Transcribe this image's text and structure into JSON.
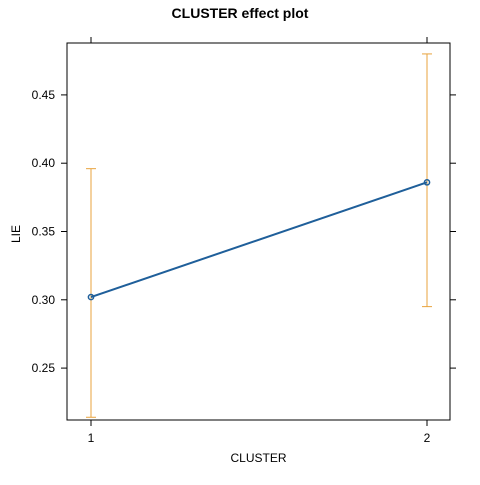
{
  "chart_data": {
    "type": "line",
    "title": "CLUSTER effect plot",
    "xlabel": "CLUSTER",
    "ylabel": "LIE",
    "categories": [
      "1",
      "2"
    ],
    "x": [
      1,
      2
    ],
    "y_ticks": [
      0.25,
      0.3,
      0.35,
      0.4,
      0.45
    ],
    "y_tick_labels": [
      "0.25",
      "0.30",
      "0.35",
      "0.40",
      "0.45"
    ],
    "ylim": [
      0.212,
      0.488
    ],
    "grid": false,
    "series": [
      {
        "values": [
          0.302,
          0.386
        ],
        "lower": [
          0.214,
          0.295
        ],
        "upper": [
          0.396,
          0.48
        ]
      }
    ],
    "colors": {
      "line": "#1f5f9a",
      "errorbar": "#e8a33d",
      "axis": "#000000"
    }
  }
}
